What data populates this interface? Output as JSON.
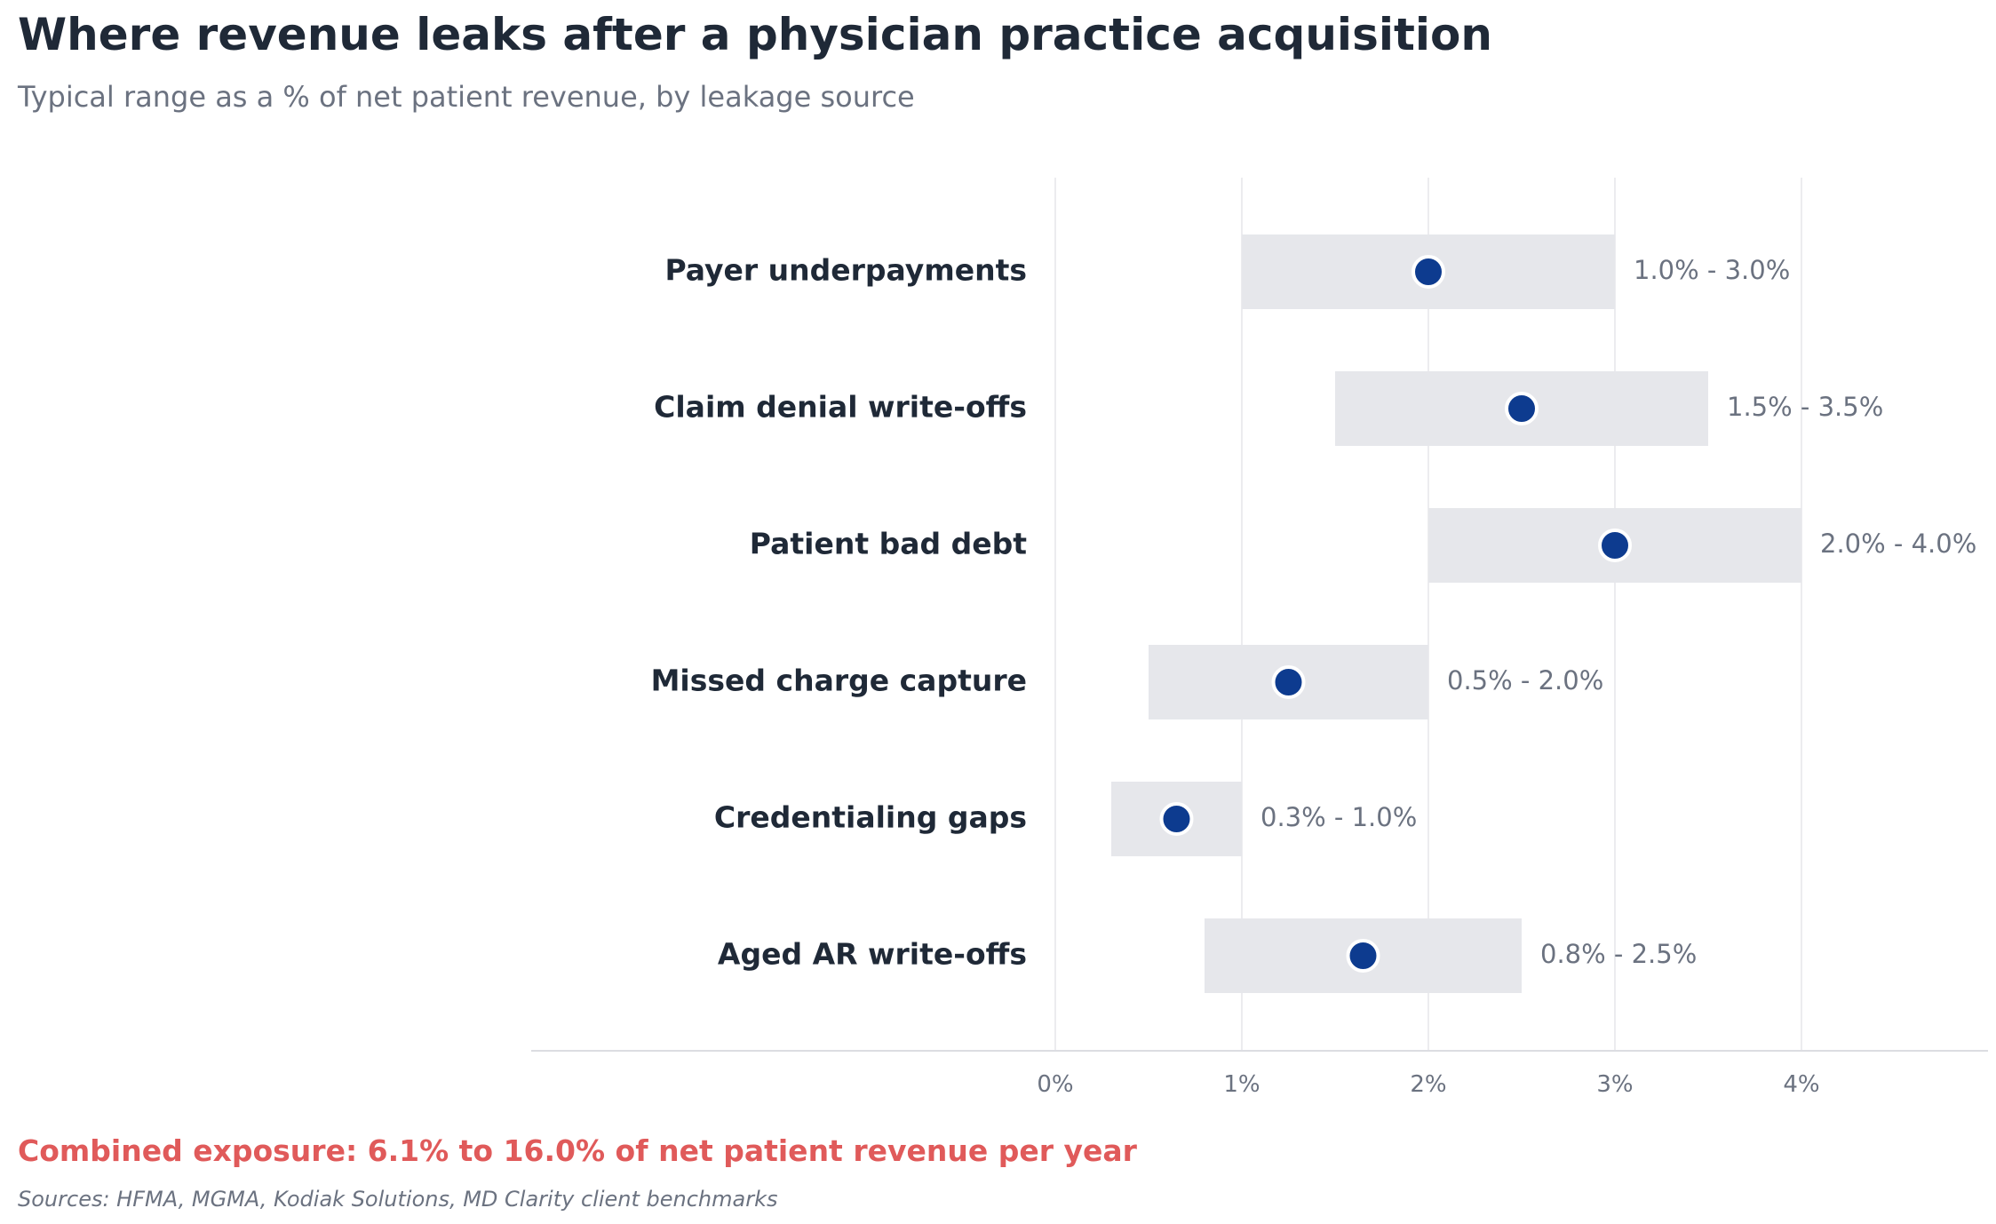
{
  "chart_data": {
    "type": "range-dot",
    "title": "Where revenue leaks after a physician practice acquisition",
    "subtitle": "Typical range as a % of net patient revenue, by leakage source",
    "categories": [
      "Payer underpayments",
      "Claim denial write-offs",
      "Patient bad debt",
      "Missed charge capture",
      "Credentialing gaps",
      "Aged AR write-offs"
    ],
    "series": [
      {
        "low": [
          1.0,
          1.5,
          2.0,
          0.5,
          0.3,
          0.8
        ],
        "high": [
          3.0,
          3.5,
          4.0,
          2.0,
          1.0,
          2.5
        ],
        "midpoint": [
          2.0,
          2.5,
          3.0,
          1.25,
          0.65,
          1.65
        ],
        "range_labels": [
          "1.0% - 3.0%",
          "1.5% - 3.5%",
          "2.0% - 4.0%",
          "0.5% - 2.0%",
          "0.3% - 1.0%",
          "0.8% - 2.5%"
        ]
      }
    ],
    "xticks": [
      0,
      1,
      2,
      3,
      4
    ],
    "xtick_labels": [
      "0%",
      "1%",
      "2%",
      "3%",
      "4%"
    ],
    "xlim": [
      -2.8,
      5.0
    ],
    "grid": "vertical",
    "colors": {
      "range_bar": "#e6e7eb",
      "dot": "#0d3b8f",
      "dot_outline": "#ffffff",
      "gridline": "#ececef",
      "callout": "#e05a5a"
    }
  },
  "callout": "Combined exposure: 6.1% to 16.0% of net patient revenue per year",
  "sources": "Sources: HFMA, MGMA, Kodiak Solutions, MD Clarity client benchmarks"
}
